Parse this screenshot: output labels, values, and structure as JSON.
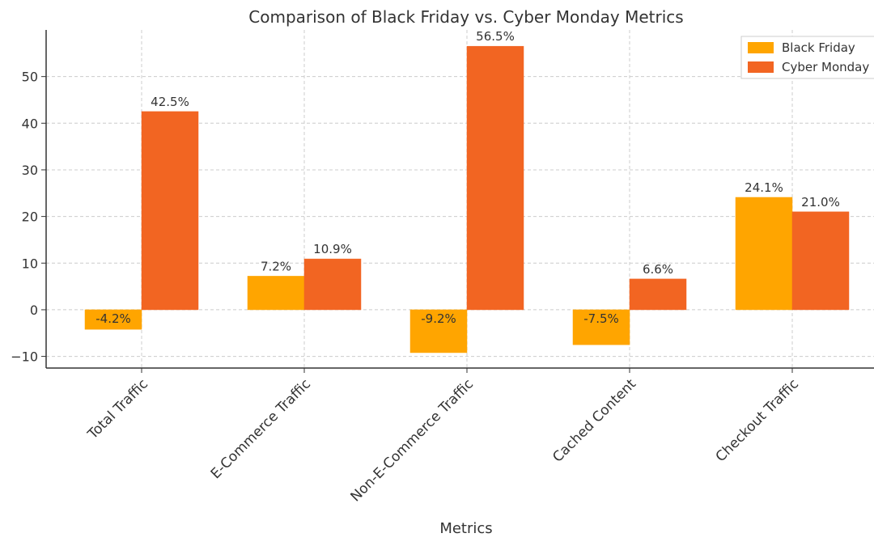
{
  "chart_data": {
    "type": "bar",
    "title": "Comparison of Black Friday vs. Cyber Monday Metrics",
    "xlabel": "Metrics",
    "ylabel": "",
    "categories": [
      "Total Traffic",
      "E-Commerce Traffic",
      "Non-E-Commerce Traffic",
      "Cached Content",
      "Checkout Traffic"
    ],
    "series": [
      {
        "name": "Black Friday",
        "color": "#FFA500",
        "values": [
          -4.2,
          7.2,
          -9.2,
          -7.5,
          24.1
        ]
      },
      {
        "name": "Cyber Monday",
        "color": "#F26522",
        "values": [
          42.5,
          10.9,
          56.5,
          6.6,
          21.0
        ]
      }
    ],
    "ylim": [
      -12.5,
      60
    ],
    "yticks": [
      -10,
      0,
      10,
      20,
      30,
      40,
      50
    ],
    "value_suffix": "%",
    "grid": true,
    "legend_position": "top-right"
  }
}
